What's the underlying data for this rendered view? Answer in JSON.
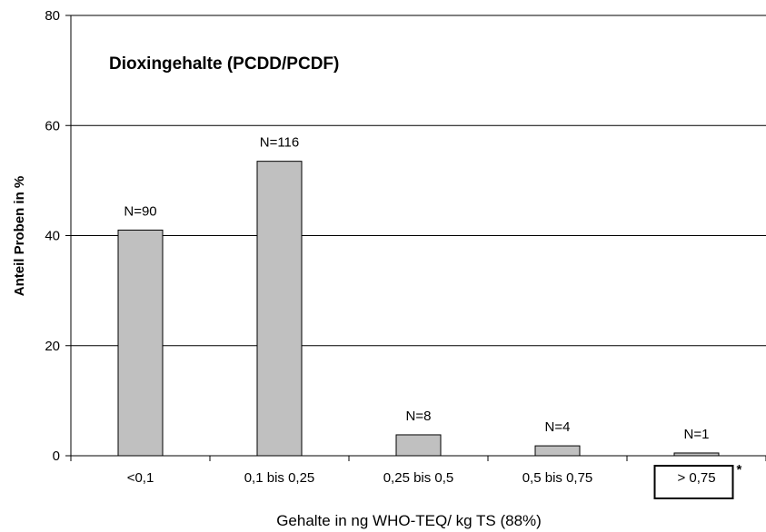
{
  "chart_data": {
    "type": "bar",
    "title": "Dioxingehalte (PCDD/PCDF)",
    "xlabel": "Gehalte in ng WHO-TEQ/ kg TS (88%)",
    "ylabel": "Anteil Proben in %",
    "ylim": [
      0,
      80
    ],
    "yticks": [
      0,
      20,
      40,
      60,
      80
    ],
    "grid": true,
    "categories": [
      "<0,1",
      "0,1 bis 0,25",
      "0,25 bis 0,5",
      "0,5 bis 0,75",
      "> 0,75"
    ],
    "values": [
      41,
      53.5,
      3.8,
      1.8,
      0.5
    ],
    "bar_labels": [
      "N=90",
      "N=116",
      "N=8",
      "N=4",
      "N=1"
    ],
    "highlighted_category": "> 0,75",
    "highlight_note": "*",
    "colors": {
      "bar_fill": "#c0c0c0",
      "bar_stroke": "#000000",
      "grid": "#000000"
    }
  }
}
